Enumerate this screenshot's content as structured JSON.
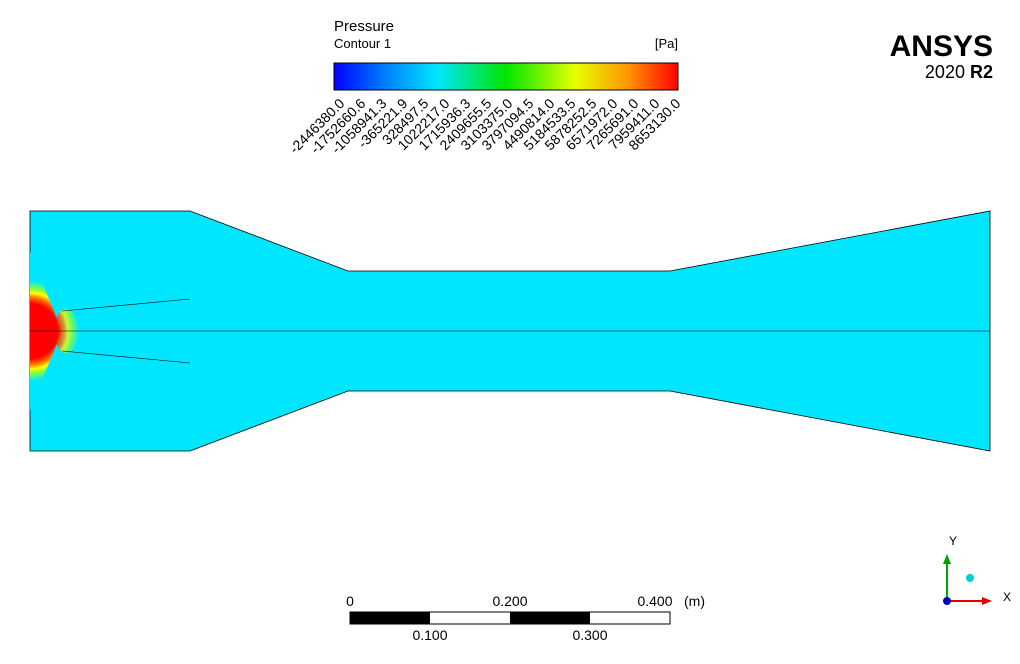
{
  "legend": {
    "title": "Pressure",
    "subtitle": "Contour 1",
    "unit": "[Pa]",
    "ticks": [
      "-2446380.0",
      "-1752660.6",
      "-1058941.3",
      "-365221.9",
      "328497.5",
      "1022217.0",
      "1715936.3",
      "2409655.5",
      "3103375.0",
      "3797094.5",
      "4490814.0",
      "5184533.5",
      "5878252.5",
      "6571972.0",
      "7265691.0",
      "7959411.0",
      "8653130.0"
    ]
  },
  "logo": {
    "brand": "ANSYS",
    "year": "2020",
    "release": "R2"
  },
  "scale_bar": {
    "top_labels": [
      "0",
      "0.200",
      "0.400"
    ],
    "unit": "(m)",
    "bottom_labels": [
      "0.100",
      "0.300"
    ]
  },
  "triad": {
    "y": "Y",
    "x": "X"
  }
}
